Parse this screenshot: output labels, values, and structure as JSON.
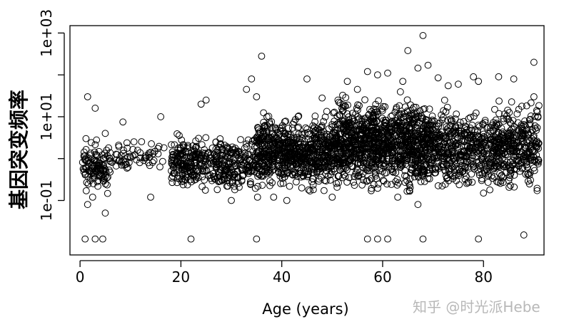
{
  "chart_data": {
    "type": "scatter",
    "title": "",
    "xlabel": "Age (years)",
    "ylabel": "基因突变频率",
    "xlim": [
      -2,
      92
    ],
    "ylim": [
      0.005,
      1500
    ],
    "log_y": true,
    "x_ticks": [
      0,
      20,
      40,
      60,
      80
    ],
    "x_tick_labels": [
      "0",
      "20",
      "40",
      "60",
      "80"
    ],
    "y_ticks": [
      0.1,
      1,
      10,
      100,
      1000
    ],
    "y_tick_labels": [
      "1e-01",
      "",
      "1e+01",
      "",
      "1e+03"
    ],
    "marker": "open circle",
    "grid": false,
    "legend": "none",
    "points": [
      [
        1.5,
        30
      ],
      [
        3,
        16
      ],
      [
        5,
        4
      ],
      [
        8.5,
        7.5
      ],
      [
        16,
        10
      ],
      [
        25,
        25
      ],
      [
        24,
        20
      ],
      [
        34,
        80
      ],
      [
        36,
        280
      ],
      [
        33,
        45
      ],
      [
        35,
        30
      ],
      [
        45,
        80
      ],
      [
        48,
        28
      ],
      [
        53,
        70
      ],
      [
        55,
        45
      ],
      [
        57,
        120
      ],
      [
        59,
        100
      ],
      [
        61,
        110
      ],
      [
        64,
        70
      ],
      [
        65,
        380
      ],
      [
        67,
        145
      ],
      [
        68,
        870
      ],
      [
        69,
        170
      ],
      [
        71,
        85
      ],
      [
        73,
        55
      ],
      [
        75,
        60
      ],
      [
        78,
        90
      ],
      [
        79,
        70
      ],
      [
        83,
        90
      ],
      [
        86,
        80
      ],
      [
        90,
        200
      ],
      [
        90,
        30
      ],
      [
        87,
        15
      ],
      [
        3,
        0.012
      ],
      [
        4.5,
        0.012
      ],
      [
        1,
        0.012
      ],
      [
        22,
        0.012
      ],
      [
        35,
        0.012
      ],
      [
        57,
        0.012
      ],
      [
        59,
        0.012
      ],
      [
        61,
        0.012
      ],
      [
        68,
        0.012
      ],
      [
        79,
        0.012
      ],
      [
        88,
        0.015
      ],
      [
        2,
        0.3
      ],
      [
        2.5,
        0.12
      ],
      [
        1.5,
        0.08
      ],
      [
        5,
        0.05
      ],
      [
        14,
        0.12
      ],
      [
        30,
        0.1
      ],
      [
        41,
        0.1
      ],
      [
        50,
        0.12
      ],
      [
        63,
        0.12
      ],
      [
        67,
        0.08
      ],
      [
        80,
        0.15
      ],
      [
        85,
        0.3
      ],
      [
        90,
        0.6
      ]
    ],
    "cloud_regions": [
      {
        "x_range": [
          0.5,
          6
        ],
        "y_range": [
          0.12,
          3
        ],
        "count": 110
      },
      {
        "x_range": [
          5,
          17
        ],
        "y_range": [
          0.4,
          3
        ],
        "count": 70
      },
      {
        "x_range": [
          18,
          35
        ],
        "y_range": [
          0.12,
          5
        ],
        "count": 430
      },
      {
        "x_range": [
          35,
          50
        ],
        "y_range": [
          0.12,
          15
        ],
        "count": 700
      },
      {
        "x_range": [
          50,
          70
        ],
        "y_range": [
          0.12,
          40
        ],
        "count": 1150
      },
      {
        "x_range": [
          70,
          91
        ],
        "y_range": [
          0.12,
          30
        ],
        "count": 760
      }
    ],
    "watermark": "知乎 @时光派Hebe"
  }
}
